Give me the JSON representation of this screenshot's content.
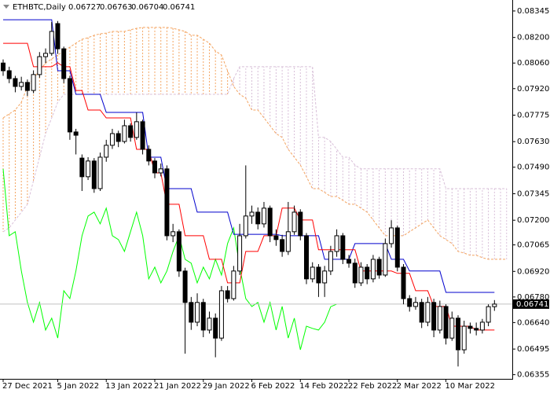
{
  "chart_data": {
    "type": "candlestick",
    "title": "ETHBTC,Daily",
    "categories": [
      "27 Dec 2021",
      null,
      null,
      null,
      null,
      null,
      null,
      null,
      null,
      "5 Jan 2022",
      null,
      null,
      null,
      null,
      null,
      null,
      null,
      "13 Jan 2022",
      null,
      null,
      null,
      null,
      null,
      null,
      null,
      "21 Jan 2022",
      null,
      null,
      null,
      null,
      null,
      null,
      null,
      "29 Jan 2022",
      null,
      null,
      null,
      null,
      null,
      null,
      null,
      "6 Feb 2022",
      null,
      null,
      null,
      null,
      null,
      null,
      null,
      "14 Feb 2022",
      null,
      null,
      null,
      null,
      null,
      null,
      null,
      "22 Feb 2022",
      null,
      null,
      null,
      null,
      null,
      null,
      null,
      "2 Mar 2022",
      null,
      null,
      null,
      null,
      null,
      null,
      null,
      "10 Mar 2022",
      null,
      null,
      null,
      null,
      null,
      null,
      null,
      null,
      null,
      null
    ],
    "open": [
      0.0806,
      0.08018,
      0.07975,
      0.07932,
      0.07954,
      0.0791,
      0.07997,
      0.08095,
      0.08113,
      0.08276,
      0.08138,
      0.07975,
      0.07683,
      0.0754,
      0.07438,
      0.07524,
      0.07373,
      0.07545,
      0.0761,
      0.07674,
      0.07631,
      0.07717,
      0.07653,
      0.07739,
      0.07588,
      0.07524,
      0.07459,
      0.07481,
      0.07115,
      0.07137,
      0.06922,
      0.0675,
      0.06642,
      0.0675,
      0.06599,
      0.06664,
      0.06555,
      0.06814,
      0.06771,
      0.06922,
      0.07115,
      0.07223,
      0.07244,
      0.0718,
      0.07266,
      0.07115,
      0.07094,
      0.07029,
      0.07137,
      0.07244,
      0.07115,
      0.06879,
      0.06943,
      0.06857,
      0.06922,
      0.07029,
      0.07115,
      0.06986,
      0.06965,
      0.06857,
      0.06943,
      0.06879,
      0.06986,
      0.069,
      0.07072,
      0.07158,
      0.06943,
      0.06771,
      0.06728,
      0.0675,
      0.06642,
      0.0675,
      0.06599,
      0.06728,
      0.06555,
      0.06664,
      0.06491,
      0.0662,
      0.06608,
      0.06599,
      0.06642,
      0.06727,
      null,
      null
    ],
    "high": [
      0.0808,
      0.0804,
      0.0799,
      0.07985,
      0.0797,
      0.0802,
      0.0812,
      0.0814,
      0.08285,
      0.0829,
      0.0815,
      0.0799,
      0.077,
      0.0756,
      0.07545,
      0.0754,
      0.0757,
      0.0764,
      0.077,
      0.0769,
      0.0775,
      0.0773,
      0.0779,
      0.0775,
      0.0761,
      0.0754,
      0.0751,
      0.075,
      0.0718,
      0.0715,
      0.0694,
      0.0678,
      0.068,
      0.0677,
      0.067,
      0.0669,
      0.0684,
      0.0684,
      0.0695,
      0.0718,
      0.075,
      0.0728,
      0.0727,
      0.073,
      0.0728,
      0.0715,
      0.0712,
      0.073,
      0.0728,
      0.0726,
      0.0713,
      0.0697,
      0.0696,
      0.0695,
      0.0706,
      0.0715,
      0.0713,
      0.0701,
      0.0699,
      0.0697,
      0.0696,
      0.0701,
      0.07,
      0.071,
      0.072,
      0.0717,
      0.0696,
      0.0679,
      0.0678,
      0.0677,
      0.0678,
      0.0677,
      0.0676,
      0.0674,
      0.067,
      0.0668,
      0.0665,
      0.0664,
      0.0664,
      0.0666,
      0.0674,
      0.06763,
      null,
      null
    ],
    "low": [
      0.0799,
      0.0795,
      0.079,
      0.0791,
      0.0788,
      0.07895,
      0.0798,
      0.0806,
      0.081,
      0.0811,
      0.0795,
      0.0764,
      0.0756,
      0.0736,
      0.0742,
      0.0735,
      0.0736,
      0.0752,
      0.0759,
      0.076,
      0.0762,
      0.0763,
      0.0764,
      0.0756,
      0.075,
      0.0743,
      0.0744,
      0.0709,
      0.0708,
      0.0689,
      0.0647,
      0.066,
      0.0662,
      0.0656,
      0.0658,
      0.0645,
      0.0654,
      0.0675,
      0.0676,
      0.069,
      0.071,
      0.0718,
      0.0715,
      0.0716,
      0.0708,
      0.0706,
      0.07,
      0.0701,
      0.0712,
      0.0709,
      0.0685,
      0.0686,
      0.0678,
      0.0678,
      0.069,
      0.07,
      0.0696,
      0.0694,
      0.0683,
      0.0684,
      0.0685,
      0.0686,
      0.0688,
      0.0689,
      0.0705,
      0.0692,
      0.0674,
      0.067,
      0.0671,
      0.0661,
      0.0662,
      0.0656,
      0.0658,
      0.0652,
      0.0654,
      0.064,
      0.0647,
      0.0658,
      0.0657,
      0.0658,
      0.0662,
      0.06704,
      null,
      null
    ],
    "close": [
      0.08018,
      0.07975,
      0.07932,
      0.07954,
      0.0791,
      0.07997,
      0.08095,
      0.08113,
      0.08233,
      0.08138,
      0.07975,
      0.07683,
      0.07665,
      0.07438,
      0.07524,
      0.07373,
      0.07545,
      0.0761,
      0.07674,
      0.07631,
      0.07717,
      0.07653,
      0.07739,
      0.07588,
      0.07524,
      0.07459,
      0.07481,
      0.07115,
      0.07137,
      0.06922,
      0.0675,
      0.06642,
      0.0675,
      0.06599,
      0.06664,
      0.06555,
      0.06814,
      0.06771,
      0.06922,
      0.07115,
      0.07223,
      0.07244,
      0.0718,
      0.07266,
      0.07115,
      0.07094,
      0.07029,
      0.07137,
      0.07244,
      0.07115,
      0.06879,
      0.06943,
      0.06857,
      0.06922,
      0.07029,
      0.07115,
      0.06986,
      0.06965,
      0.06857,
      0.06943,
      0.06879,
      0.06986,
      0.069,
      0.07072,
      0.07158,
      0.06943,
      0.06771,
      0.06728,
      0.0675,
      0.06642,
      0.0675,
      0.06599,
      0.06728,
      0.06555,
      0.06664,
      0.06491,
      0.0662,
      0.06608,
      0.06599,
      0.06642,
      0.06727,
      0.06741,
      null,
      null
    ],
    "tenkan": [
      0.08168,
      0.08168,
      0.08168,
      0.08168,
      0.08168,
      0.0804,
      0.0804,
      0.0804,
      0.0804,
      0.08061,
      0.0804,
      0.0804,
      0.0791,
      0.0791,
      0.07803,
      0.07803,
      0.07803,
      0.0776,
      0.0776,
      0.0776,
      0.0776,
      0.0776,
      0.07588,
      0.07588,
      0.07588,
      0.07459,
      0.07459,
      0.07287,
      0.07287,
      0.07287,
      0.07115,
      0.07115,
      0.07115,
      0.07115,
      0.06986,
      0.06986,
      0.06986,
      0.06857,
      0.06857,
      0.06857,
      0.07029,
      0.07029,
      0.07029,
      0.07115,
      0.07115,
      0.07115,
      0.07266,
      0.07266,
      0.07266,
      0.07201,
      0.07201,
      0.07201,
      0.07038,
      0.07038,
      0.07038,
      0.07038,
      0.07038,
      0.07038,
      0.07038,
      0.06922,
      0.06922,
      0.06922,
      0.06922,
      0.06922,
      0.06922,
      0.06909,
      0.06909,
      0.06909,
      0.06814,
      0.06814,
      0.06814,
      0.06728,
      0.06728,
      0.06728,
      0.0662,
      0.0662,
      0.0662,
      0.0662,
      0.06599,
      0.06599,
      0.06599,
      0.06599,
      null,
      null
    ],
    "kijun": [
      0.08297,
      0.08297,
      0.08297,
      0.08297,
      0.08297,
      0.08297,
      0.08297,
      0.08297,
      0.08297,
      0.08018,
      0.08018,
      0.08018,
      0.07889,
      0.07889,
      0.07889,
      0.07889,
      0.07889,
      0.0779,
      0.0779,
      0.0779,
      0.0779,
      0.0779,
      0.0779,
      0.0779,
      0.07545,
      0.07545,
      0.07545,
      0.07373,
      0.07373,
      0.07373,
      0.07373,
      0.07373,
      0.07244,
      0.07244,
      0.07244,
      0.07244,
      0.07244,
      0.07244,
      0.07123,
      0.07123,
      0.07123,
      0.07123,
      0.07123,
      0.07123,
      0.07123,
      0.07123,
      0.07115,
      0.07115,
      0.07115,
      0.07115,
      0.07115,
      0.07115,
      0.07115,
      0.06986,
      0.06986,
      0.06986,
      0.06986,
      0.06986,
      0.07072,
      0.07072,
      0.07072,
      0.07072,
      0.07072,
      0.07072,
      0.06986,
      0.06986,
      0.06986,
      0.06922,
      0.06922,
      0.06922,
      0.06922,
      0.06922,
      0.06922,
      0.06805,
      0.06805,
      0.06805,
      0.06805,
      0.06805,
      0.06805,
      0.06805,
      0.06805,
      0.06805,
      null,
      null
    ],
    "chikou": [
      0.07481,
      0.07115,
      0.07137,
      0.06922,
      0.0675,
      0.06642,
      0.0675,
      0.06599,
      0.06664,
      0.06555,
      0.06814,
      0.06771,
      0.06922,
      0.07115,
      0.07223,
      0.07244,
      0.0718,
      0.07266,
      0.07115,
      0.07094,
      0.07029,
      0.07137,
      0.07244,
      0.07115,
      0.06879,
      0.06943,
      0.06857,
      0.06922,
      0.07029,
      0.07115,
      0.06986,
      0.06965,
      0.06857,
      0.06943,
      0.06879,
      0.06986,
      0.069,
      0.07072,
      0.07158,
      0.06943,
      0.06771,
      0.06728,
      0.0675,
      0.06642,
      0.0675,
      0.06599,
      0.06728,
      0.06555,
      0.06664,
      0.06491,
      0.0662,
      0.06608,
      0.06599,
      0.06642,
      0.06727,
      0.06741,
      null,
      null,
      null,
      null,
      null,
      null,
      null,
      null,
      null,
      null,
      null,
      null,
      null,
      null,
      null,
      null,
      null,
      null,
      null,
      null,
      null,
      null,
      null,
      null,
      null,
      null,
      null,
      null
    ],
    "span_a": [
      0.0776,
      0.07782,
      0.07803,
      0.07846,
      0.07932,
      0.07975,
      0.08018,
      0.08061,
      0.08083,
      0.08104,
      0.08126,
      0.08147,
      0.08169,
      0.0819,
      0.08199,
      0.08212,
      0.0822,
      0.08224,
      0.08233,
      0.08233,
      0.08233,
      0.08242,
      0.0825,
      0.08255,
      0.08255,
      0.08255,
      0.08255,
      0.08255,
      0.0825,
      0.08242,
      0.08233,
      0.08212,
      0.08212,
      0.0819,
      0.08169,
      0.08126,
      0.08104,
      0.08018,
      0.07932,
      0.07889,
      0.07868,
      0.07803,
      0.07803,
      0.0776,
      0.07717,
      0.07674,
      0.07653,
      0.07588,
      0.07545,
      0.07502,
      0.07438,
      0.07373,
      0.07373,
      0.07352,
      0.0733,
      0.0733,
      0.07309,
      0.07287,
      0.07287,
      0.07266,
      0.07244,
      0.07201,
      0.07158,
      0.07115,
      0.07115,
      0.07115,
      0.07115,
      0.07137,
      0.07158,
      0.0718,
      0.07201,
      0.07158,
      0.07115,
      0.07094,
      0.07072,
      0.07029,
      0.0702,
      0.07008,
      0.07008,
      0.06995,
      0.06986,
      0.06986,
      0.06986,
      0.06986
    ],
    "span_b": [
      0.07137,
      0.07158,
      0.07201,
      0.07244,
      0.07287,
      0.07416,
      0.07545,
      0.07674,
      0.0776,
      0.07846,
      0.07889,
      0.07889,
      0.07889,
      0.07889,
      0.07889,
      0.07889,
      0.07889,
      0.07889,
      0.07889,
      0.07889,
      0.07889,
      0.07889,
      0.07889,
      0.07889,
      0.07889,
      0.07889,
      0.07889,
      0.07889,
      0.07889,
      0.07889,
      0.07889,
      0.07889,
      0.07889,
      0.07889,
      0.07889,
      0.07889,
      0.07889,
      0.07889,
      0.07975,
      0.0804,
      0.0804,
      0.0804,
      0.0804,
      0.0804,
      0.0804,
      0.0804,
      0.0804,
      0.0804,
      0.0804,
      0.0804,
      0.0804,
      0.0804,
      0.07653,
      0.07653,
      0.07631,
      0.07588,
      0.07545,
      0.07545,
      0.07502,
      0.07481,
      0.07481,
      0.07481,
      0.07481,
      0.07481,
      0.07481,
      0.07481,
      0.07481,
      0.07481,
      0.07481,
      0.07481,
      0.07481,
      0.07481,
      0.07481,
      0.07373,
      0.07373,
      0.07373,
      0.07373,
      0.07373,
      0.07373,
      0.07373,
      0.07373,
      0.07373,
      0.07373,
      0.07373
    ],
    "colors": {
      "tenkan": "#ff0000",
      "kijun": "#0000cd",
      "chikou": "#00ff00",
      "span_a": "#f4a460",
      "span_b": "#d8bfd8",
      "bull": "#ffffff",
      "bear": "#000000"
    },
    "ylim": [
      0.06332,
      0.08405
    ],
    "yticks": [
      0.08345,
      {
        "value": 0.082,
        "label": "0.08200"
      },
      {
        "value": 0.0806,
        "label": "0.08060"
      },
      {
        "value": 0.0792,
        "label": "0.07920"
      },
      0.07775,
      {
        "value": 0.0763,
        "label": "0.07630"
      },
      {
        "value": 0.0749,
        "label": "0.07490"
      },
      0.07345,
      {
        "value": 0.072,
        "label": "0.07200"
      },
      0.07065,
      {
        "value": 0.0692,
        "label": "0.06920"
      },
      {
        "value": 0.0678,
        "label": "0.06780"
      },
      {
        "value": 0.0664,
        "label": "0.06640"
      },
      0.06495,
      0.06355
    ],
    "grid": false
  }
}
